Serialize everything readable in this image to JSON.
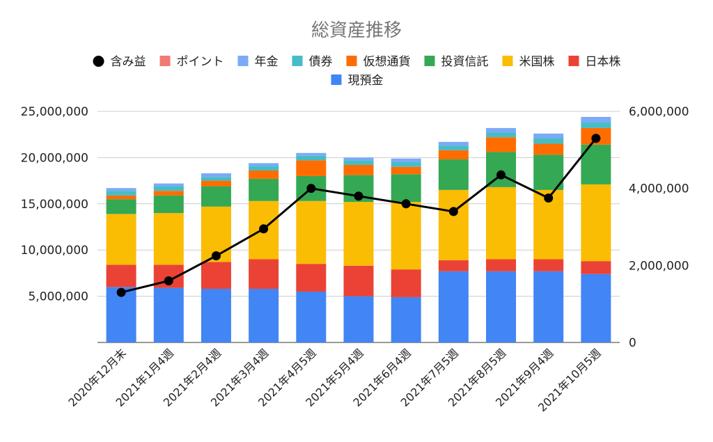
{
  "chart_data": {
    "type": "bar",
    "stacked": true,
    "title": "総資産推移",
    "legend_position": "top",
    "grid": true,
    "categories": [
      "2020年12月末",
      "2021年1月4週",
      "2021年2月4週",
      "2021年3月4週",
      "2021年4月5週",
      "2021年5月4週",
      "2021年6月4週",
      "2021年7月5週",
      "2021年8月5週",
      "2021年9月4週",
      "2021年10月5週"
    ],
    "ylim_left": [
      0,
      25000000
    ],
    "yticks_left": [
      "5,000,000",
      "10,000,000",
      "15,000,000",
      "20,000,000",
      "25,000,000"
    ],
    "ylim_right": [
      0,
      6000000
    ],
    "yticks_right": [
      "0",
      "2,000,000",
      "4,000,000",
      "6,000,000"
    ],
    "series": [
      {
        "name": "現預金",
        "color": "#4285f4",
        "values": [
          6000000,
          5900000,
          5800000,
          5800000,
          5500000,
          5000000,
          4900000,
          7700000,
          7700000,
          7700000,
          7400000
        ]
      },
      {
        "name": "日本株",
        "color": "#ea4335",
        "values": [
          2400000,
          2500000,
          2900000,
          3200000,
          3000000,
          3300000,
          3000000,
          1200000,
          1300000,
          1300000,
          1400000
        ]
      },
      {
        "name": "米国株",
        "color": "#fbbc04",
        "values": [
          5500000,
          5600000,
          6000000,
          6300000,
          6800000,
          6900000,
          7300000,
          7600000,
          7800000,
          7500000,
          8300000
        ]
      },
      {
        "name": "投資信託",
        "color": "#34a853",
        "values": [
          1600000,
          1900000,
          2200000,
          2400000,
          2700000,
          2900000,
          3000000,
          3300000,
          3800000,
          3800000,
          4300000
        ]
      },
      {
        "name": "仮想通貨",
        "color": "#ff6d01",
        "values": [
          400000,
          500000,
          600000,
          900000,
          1700000,
          1100000,
          800000,
          1000000,
          1600000,
          1200000,
          1800000
        ]
      },
      {
        "name": "債券",
        "color": "#46bdc6",
        "values": [
          500000,
          500000,
          400000,
          500000,
          500000,
          500000,
          500000,
          500000,
          500000,
          600000,
          600000
        ]
      },
      {
        "name": "年金",
        "color": "#7baaf7",
        "values": [
          300000,
          300000,
          400000,
          300000,
          300000,
          300000,
          400000,
          400000,
          500000,
          500000,
          600000
        ]
      },
      {
        "name": "ポイント",
        "color": "#f07b72",
        "values": [
          0,
          0,
          0,
          0,
          0,
          0,
          0,
          0,
          0,
          0,
          0
        ]
      }
    ],
    "line_series": {
      "name": "含み益",
      "color": "#000000",
      "axis": "right",
      "values": [
        1300000,
        1600000,
        2250000,
        2950000,
        4000000,
        3800000,
        3600000,
        3400000,
        4350000,
        3750000,
        5300000
      ]
    },
    "legend_order": [
      "含み益",
      "ポイント",
      "年金",
      "債券",
      "仮想通貨",
      "投資信託",
      "米国株",
      "日本株",
      "現預金"
    ]
  }
}
